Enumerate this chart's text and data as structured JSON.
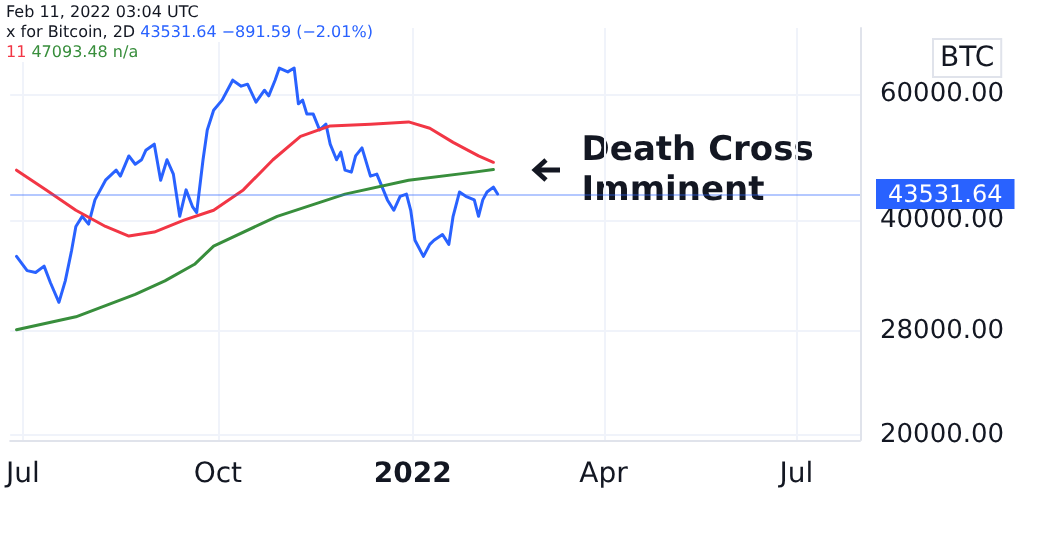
{
  "chart_data": {
    "type": "line",
    "ylabel": "BTC",
    "log": "y",
    "grid": true,
    "marker": "none",
    "annotations": [
      "Feb 11, 2022 03:04 UTC",
      "x for Bitcoin, 2D",
      "43531.64 −891.59 (−2.01%)",
      "11",
      "47093.48 n/a",
      {
        "text": "Death Cross Imminent",
        "x": "2022-02-10",
        "y": 47093.48
      }
    ],
    "xlim": [
      "2021-06-25",
      "2022-07-31"
    ],
    "xticks": [
      {
        "value": "2021-07-01",
        "label": "Jul"
      },
      {
        "value": "2021-10-01",
        "label": "Oct"
      },
      {
        "value": "2022-01-01",
        "label": "2022"
      },
      {
        "value": "2022-04-01",
        "label": "Apr"
      },
      {
        "value": "2022-07-01",
        "label": "Jul"
      }
    ],
    "ylim": [
      19700,
      74300
    ],
    "yticks": [
      {
        "value": 20000,
        "label": "20000.00"
      },
      {
        "value": 28000,
        "label": "28000.00"
      },
      {
        "value": 40000,
        "label": "40000.00"
      },
      {
        "value": 60000,
        "label": "60000.00"
      }
    ],
    "ref_lines": [
      {
        "axis": "y",
        "value": 43531.64,
        "label": "43531.64",
        "color": "#2962ff"
      }
    ],
    "series": [
      {
        "color": "#2962ff",
        "x": [
          "2021-06-28",
          "2021-07-03",
          "2021-07-07",
          "2021-07-11",
          "2021-07-14",
          "2021-07-18",
          "2021-07-21",
          "2021-07-24",
          "2021-07-26",
          "2021-07-29",
          "2021-08-01",
          "2021-08-04",
          "2021-08-09",
          "2021-08-14",
          "2021-08-16",
          "2021-08-20",
          "2021-08-23",
          "2021-08-26",
          "2021-08-28",
          "2021-09-01",
          "2021-09-04",
          "2021-09-07",
          "2021-09-10",
          "2021-09-13",
          "2021-09-16",
          "2021-09-19",
          "2021-09-21",
          "2021-09-24",
          "2021-09-26",
          "2021-09-29",
          "2021-10-03",
          "2021-10-08",
          "2021-10-12",
          "2021-10-15",
          "2021-10-19",
          "2021-10-23",
          "2021-10-25",
          "2021-10-28",
          "2021-10-30",
          "2021-11-03",
          "2021-11-06",
          "2021-11-08",
          "2021-11-10",
          "2021-11-12",
          "2021-11-15",
          "2021-11-18",
          "2021-11-21",
          "2021-11-23",
          "2021-11-26",
          "2021-11-28",
          "2021-11-30",
          "2021-12-03",
          "2021-12-05",
          "2021-12-08",
          "2021-12-12",
          "2021-12-15",
          "2021-12-17",
          "2021-12-20",
          "2021-12-23",
          "2021-12-26",
          "2021-12-29",
          "2021-12-31",
          "2022-01-02",
          "2022-01-06",
          "2022-01-09",
          "2022-01-11",
          "2022-01-15",
          "2022-01-18",
          "2022-01-20",
          "2022-01-23",
          "2022-01-26",
          "2022-01-30",
          "2022-02-01",
          "2022-02-03",
          "2022-02-05",
          "2022-02-08",
          "2022-02-10"
        ],
        "values": [
          35600,
          34000,
          33800,
          34500,
          32700,
          30700,
          32900,
          36300,
          39200,
          40500,
          39500,
          42700,
          45500,
          47000,
          46100,
          49200,
          47900,
          48600,
          50100,
          51100,
          45500,
          48600,
          46400,
          40500,
          44100,
          41800,
          41000,
          48600,
          53500,
          57000,
          58900,
          62800,
          61600,
          62000,
          58500,
          60800,
          59700,
          62800,
          65300,
          64500,
          65300,
          58200,
          58900,
          56300,
          56300,
          53500,
          54500,
          51100,
          48600,
          49800,
          47000,
          46700,
          49200,
          50500,
          46100,
          46400,
          44900,
          42700,
          41300,
          43200,
          43500,
          41300,
          37500,
          35600,
          37000,
          37500,
          38200,
          37000,
          40500,
          43800,
          43200,
          42700,
          40500,
          42700,
          43800,
          44500,
          43531.64
        ]
      },
      {
        "color": "#f23645",
        "x": [
          "2021-06-28",
          "2021-07-12",
          "2021-07-26",
          "2021-08-09",
          "2021-08-20",
          "2021-09-01",
          "2021-09-15",
          "2021-09-29",
          "2021-10-13",
          "2021-10-27",
          "2021-11-09",
          "2021-11-23",
          "2021-12-12",
          "2021-12-30",
          "2022-01-09",
          "2022-01-20",
          "2022-02-01",
          "2022-02-08"
        ],
        "values": [
          47000,
          44100,
          41300,
          39200,
          38000,
          38500,
          40000,
          41300,
          44100,
          48600,
          52400,
          54200,
          54500,
          54900,
          53800,
          51400,
          49200,
          48200
        ]
      },
      {
        "color": "#388e3c",
        "x": [
          "2021-06-28",
          "2021-07-26",
          "2021-08-23",
          "2021-09-06",
          "2021-09-20",
          "2021-09-29",
          "2021-10-29",
          "2021-11-30",
          "2021-12-30",
          "2022-01-30",
          "2022-02-08"
        ],
        "values": [
          28100,
          29300,
          31500,
          32900,
          34700,
          36800,
          40500,
          43500,
          45500,
          46700,
          47093.48
        ]
      }
    ]
  }
}
